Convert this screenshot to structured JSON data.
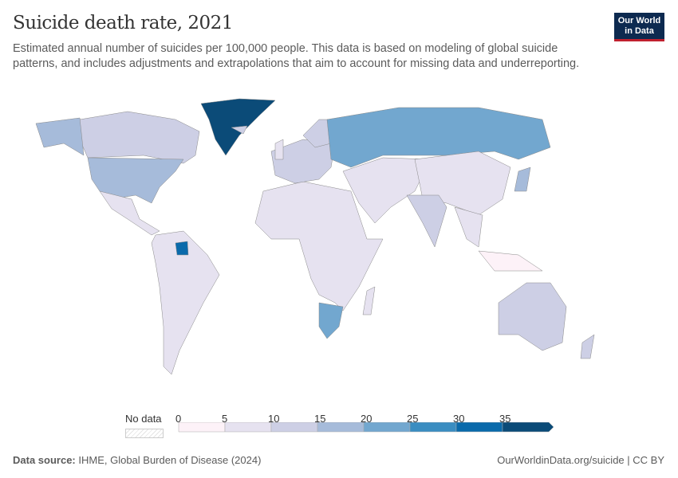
{
  "header": {
    "title": "Suicide death rate, 2021",
    "subtitle": "Estimated annual number of suicides per 100,000 people. This data is based on modeling of global suicide patterns, and includes adjustments and extrapolations that aim to account for missing data and underreporting.",
    "logo": "Our World in Data"
  },
  "chart_data": {
    "type": "choropleth",
    "legend": {
      "no_data_label": "No data",
      "bins": [
        0,
        5,
        10,
        15,
        20,
        25,
        30,
        35
      ],
      "open_ended_last": true,
      "colors": [
        "#fdf2f8",
        "#e6e2f0",
        "#cdcfe5",
        "#a6bbda",
        "#72a7cf",
        "#3a8dc1",
        "#0a6aab",
        "#0b4b78"
      ],
      "placement": "bottom"
    },
    "regions": [
      {
        "name": "Greenland",
        "value": 37
      },
      {
        "name": "Canada",
        "value": 12
      },
      {
        "name": "Alaska",
        "value": 17
      },
      {
        "name": "United States",
        "value": 17
      },
      {
        "name": "Mexico & Central America",
        "value": 6
      },
      {
        "name": "South America",
        "value": 8
      },
      {
        "name": "Africa",
        "value": 7
      },
      {
        "name": "Europe",
        "value": 12
      },
      {
        "name": "Scandinavia",
        "value": 12
      },
      {
        "name": "Russia",
        "value": 22
      },
      {
        "name": "Middle East & Central Asia",
        "value": 5
      },
      {
        "name": "China",
        "value": 7
      },
      {
        "name": "India",
        "value": 14
      },
      {
        "name": "Southeast Asia",
        "value": 7
      },
      {
        "name": "Indonesia",
        "value": 4
      },
      {
        "name": "Japan",
        "value": 17
      },
      {
        "name": "Australia",
        "value": 13
      },
      {
        "name": "New Zealand",
        "value": 12
      },
      {
        "name": "Madagascar",
        "value": 7
      },
      {
        "name": "United Kingdom",
        "value": 8
      },
      {
        "name": "Iceland",
        "value": 12
      },
      {
        "name": "Southern Africa",
        "value": 20
      },
      {
        "name": "Guyana",
        "value": 30
      }
    ]
  },
  "footer": {
    "source_label": "Data source:",
    "source": " IHME, Global Burden of Disease (2024)",
    "url": "OurWorldinData.org/suicide | CC BY"
  }
}
